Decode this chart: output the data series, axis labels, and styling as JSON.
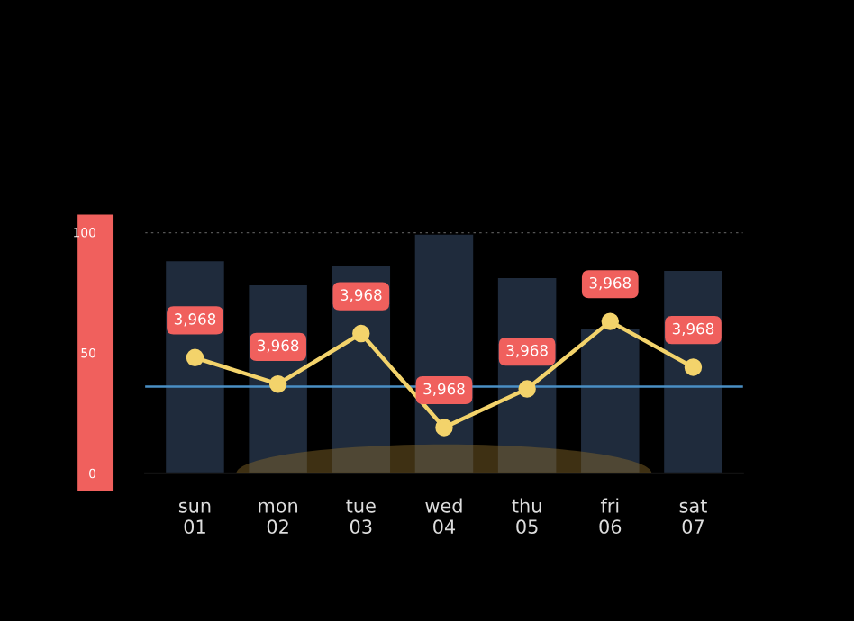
{
  "chart_data": {
    "type": "bar",
    "categories": [
      "sun\n01",
      "mon\n02",
      "tue\n03",
      "wed\n04",
      "thu\n05",
      "fri\n06",
      "sat\n07"
    ],
    "series": [
      {
        "color": "#1f2b3c",
        "values": [
          88,
          78,
          86,
          99,
          81,
          60,
          84
        ]
      },
      {
        "type": "line",
        "color": "#f3d36b",
        "values": [
          48,
          37,
          58,
          19,
          35,
          63,
          44
        ]
      }
    ],
    "annotations": [
      {
        "text": "3,968",
        "x": "sun\n01",
        "y": 48
      },
      {
        "text": "3,968",
        "x": "mon\n02",
        "y": 37
      },
      {
        "text": "3,968",
        "x": "tue\n03",
        "y": 58
      },
      {
        "text": "3,968",
        "x": "wed\n04",
        "y": 19
      },
      {
        "text": "3,968",
        "x": "thu\n05",
        "y": 35
      },
      {
        "text": "3,968",
        "x": "fri\n06",
        "y": 63
      },
      {
        "text": "3,968",
        "x": "sat\n07",
        "y": 44
      }
    ],
    "ylim": [
      0,
      100
    ],
    "yticks": [
      0,
      50,
      100
    ],
    "marker": "circle",
    "line_style": "solid",
    "grid": false,
    "legend": false,
    "ref_lines": [
      {
        "axis": "y",
        "value": 36,
        "color": "#4a8fc4",
        "line_style": "solid"
      },
      {
        "axis": "y",
        "value": 100,
        "color": "#555555",
        "line_style": "dotted"
      }
    ]
  }
}
